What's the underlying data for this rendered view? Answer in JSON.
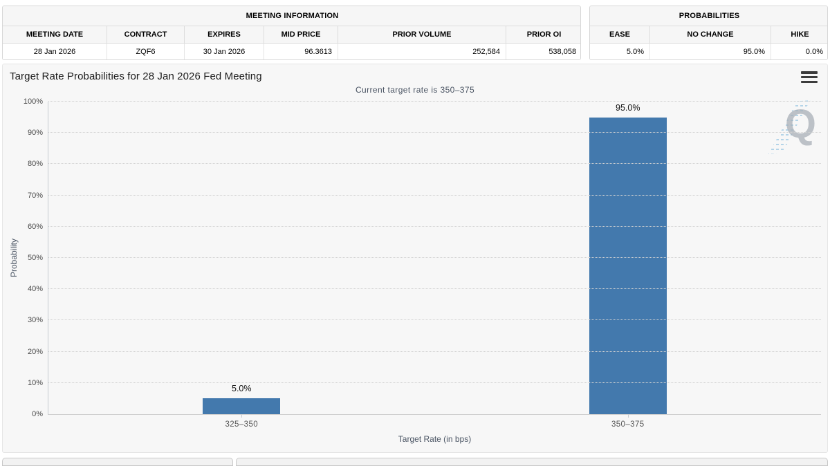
{
  "meeting_info": {
    "title": "MEETING INFORMATION",
    "columns": [
      "MEETING DATE",
      "CONTRACT",
      "EXPIRES",
      "MID PRICE",
      "PRIOR VOLUME",
      "PRIOR OI"
    ],
    "row": [
      "28 Jan 2026",
      "ZQF6",
      "30 Jan 2026",
      "96.3613",
      "252,584",
      "538,058"
    ]
  },
  "probabilities": {
    "title": "PROBABILITIES",
    "columns": [
      "EASE",
      "NO CHANGE",
      "HIKE"
    ],
    "row": [
      "5.0%",
      "95.0%",
      "0.0%"
    ]
  },
  "chart": {
    "title": "Target Rate Probabilities for 28 Jan 2026 Fed Meeting",
    "subtitle": "Current target rate is 350–375",
    "menu_icon": "hamburger-menu-icon",
    "watermark_letter": "Q"
  },
  "chart_data": {
    "type": "bar",
    "title": "Target Rate Probabilities for 28 Jan 2026 Fed Meeting",
    "subtitle": "Current target rate is 350–375",
    "categories": [
      "325–350",
      "350–375"
    ],
    "values": [
      5.0,
      95.0
    ],
    "value_labels": [
      "5.0%",
      "95.0%"
    ],
    "xlabel": "Target Rate (in bps)",
    "ylabel": "Probability",
    "ylim": [
      0,
      100
    ],
    "yticks": [
      0,
      10,
      20,
      30,
      40,
      50,
      60,
      70,
      80,
      90,
      100
    ],
    "ytick_labels": [
      "0%",
      "10%",
      "20%",
      "30%",
      "40%",
      "50%",
      "60%",
      "70%",
      "80%",
      "90%",
      "100%"
    ],
    "grid": true,
    "grid_style": "dotted",
    "legend": false,
    "bar_color": "#4379ad",
    "panel_background": "#f7f7f7"
  }
}
